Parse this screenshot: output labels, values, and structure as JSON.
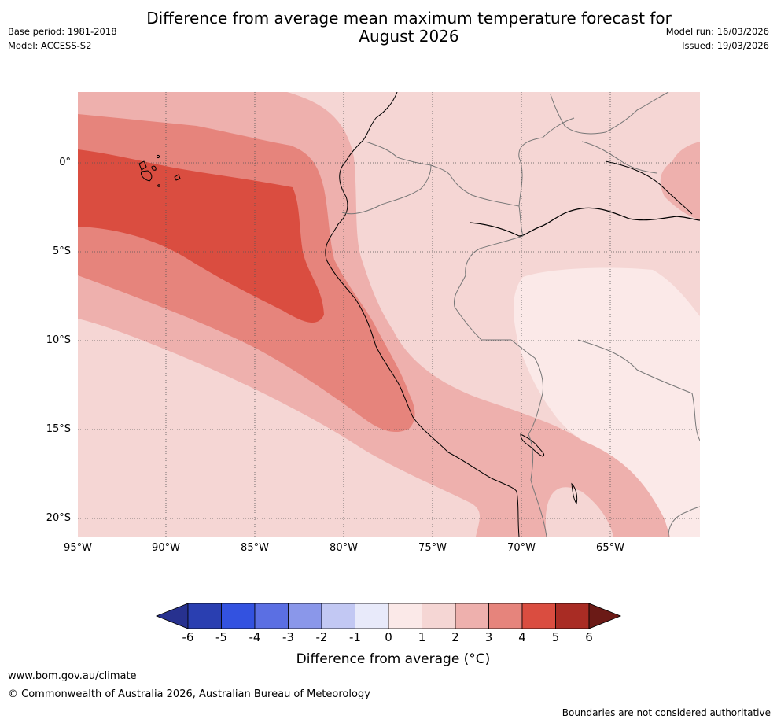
{
  "title_line1": "Difference from average mean maximum temperature forecast for",
  "title_line2": "August 2026",
  "base_period": "Base period: 1981-2018",
  "model": "Model: ACCESS-S2",
  "model_run": "Model run: 16/03/2026",
  "issued": "Issued: 19/03/2026",
  "map": {
    "region": "Western South America and eastern Pacific",
    "lat_labels": [
      "0°",
      "5°S",
      "10°S",
      "15°S",
      "20°S"
    ],
    "lon_labels": [
      "95°W",
      "90°W",
      "85°W",
      "80°W",
      "75°W",
      "70°W",
      "65°W"
    ]
  },
  "colorbar": {
    "ticks": [
      "-6",
      "-5",
      "-4",
      "-3",
      "-2",
      "-1",
      "0",
      "1",
      "2",
      "3",
      "4",
      "5",
      "6"
    ],
    "colors": [
      "#27318f",
      "#2a3fb1",
      "#3352e0",
      "#5b6fe3",
      "#8a97ea",
      "#c2c8f3",
      "#e8eafa",
      "#fbe9e8",
      "#f5d6d4",
      "#eeb0ad",
      "#e6847c",
      "#da4d40",
      "#a92c24",
      "#6b1a16"
    ],
    "label": "Difference from average (°C)"
  },
  "footer": {
    "url": "www.bom.gov.au/climate",
    "copyright": "© Commonwealth of Australia 2026, Australian Bureau of Meteorology",
    "note": "Boundaries are not considered authoritative"
  }
}
